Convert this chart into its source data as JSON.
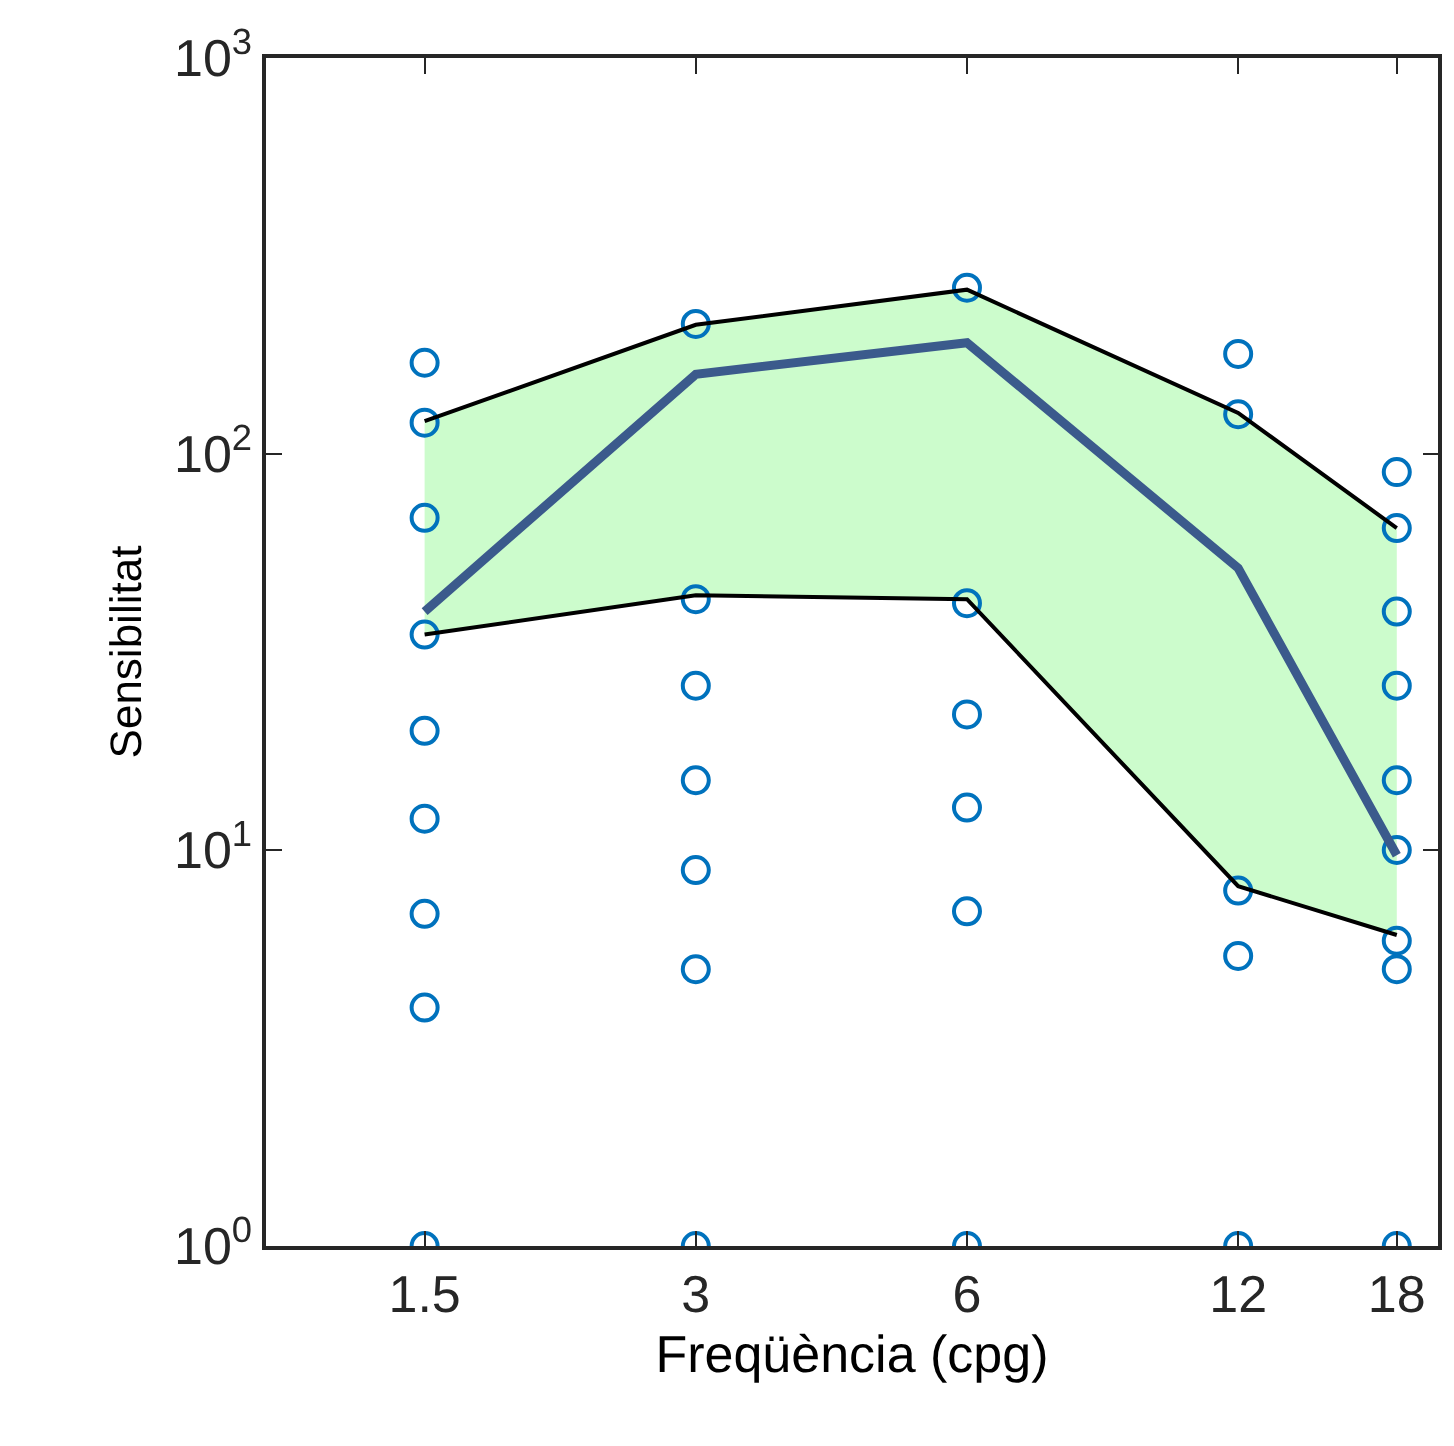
{
  "chart_data": {
    "type": "line",
    "xlabel": "Freqüència (cpg)",
    "ylabel": "Sensibilitat",
    "log": "xy",
    "marker": "none",
    "xlim": [
      1,
      20
    ],
    "xticks": [
      1.5,
      3,
      6,
      12,
      18
    ],
    "ylim": [
      1,
      1000
    ],
    "yticks": [
      {
        "value": 1,
        "label": "10$^{0}$"
      },
      {
        "value": 10,
        "label": "10$^{1}$"
      },
      {
        "value": 100,
        "label": "10$^{2}$"
      },
      {
        "value": 1000,
        "label": "10$^{3}$"
      }
    ],
    "series": [
      {
        "type": "scatter",
        "marker": "circle",
        "color": "#0072bd",
        "x": [
          1.5,
          1.5,
          1.5,
          1.5,
          1.5,
          1.5,
          1.5,
          1.5,
          1.5,
          3,
          3,
          3,
          3,
          3,
          3,
          3,
          6,
          6,
          6,
          6,
          6,
          6,
          12,
          12,
          12,
          12,
          12,
          18,
          18,
          18,
          18,
          18,
          18,
          18,
          18,
          18
        ],
        "values": [
          170,
          120,
          69,
          35,
          20,
          12,
          6.9,
          4,
          1,
          213,
          43,
          26,
          15,
          8.9,
          5,
          1,
          263,
          42,
          22,
          12.8,
          7,
          1,
          179,
          126,
          7.9,
          5.4,
          1,
          90,
          65,
          40,
          26,
          15,
          10,
          5.9,
          5,
          1
        ]
      },
      {
        "color": "#000000",
        "x": [
          1.5,
          3,
          6,
          12,
          18
        ],
        "values": [
          121,
          212,
          260,
          127,
          65
        ]
      },
      {
        "color": "#000000",
        "x": [
          1.5,
          3,
          6,
          12,
          18
        ],
        "values": [
          35,
          44,
          43,
          8.1,
          6.1
        ]
      },
      {
        "color": "#3b5a8c",
        "x": [
          1.5,
          3,
          6,
          12,
          18
        ],
        "values": [
          40,
          159,
          191,
          51.5,
          9.7
        ],
        "lower": [
          35,
          44,
          43,
          8.1,
          6.1
        ],
        "upper": [
          121,
          212,
          260,
          127,
          65
        ]
      }
    ]
  }
}
